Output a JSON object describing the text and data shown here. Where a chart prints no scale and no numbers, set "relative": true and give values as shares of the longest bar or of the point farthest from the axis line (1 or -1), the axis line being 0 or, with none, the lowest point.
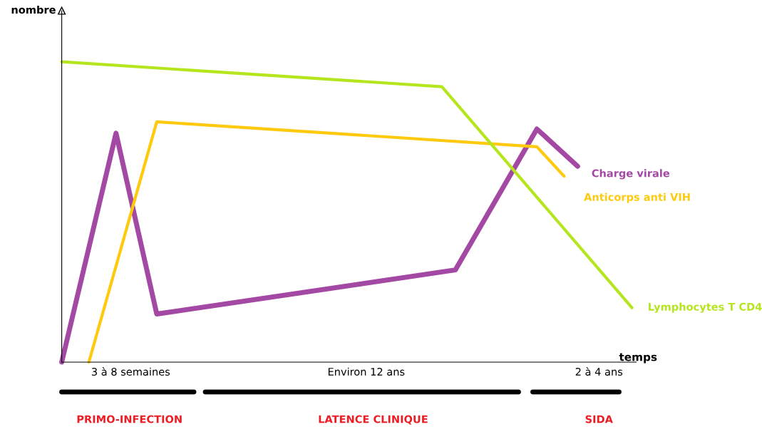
{
  "chart_data": {
    "type": "line",
    "relative": true,
    "xlabel": "temps",
    "ylabel": "nombre",
    "categories": [
      null,
      null,
      null,
      null,
      null,
      null,
      null,
      null,
      null,
      null,
      null,
      null,
      null,
      null,
      null,
      null,
      null,
      null,
      null,
      null,
      null,
      null,
      null,
      null,
      null,
      null,
      null,
      null,
      null,
      null,
      null,
      null,
      null,
      null,
      null,
      null,
      null,
      null,
      null,
      null,
      null,
      null,
      null
    ],
    "series": [
      {
        "name": "Charge virale",
        "color": "#a349a4",
        "values": [
          0,
          null,
          null,
          null,
          0.762,
          null,
          null,
          0.16,
          null,
          null,
          null,
          null,
          null,
          null,
          null,
          null,
          null,
          null,
          null,
          null,
          null,
          null,
          null,
          null,
          null,
          null,
          null,
          null,
          null,
          0.307,
          null,
          null,
          null,
          null,
          null,
          0.776,
          null,
          null,
          0.652,
          null,
          null,
          null,
          null
        ]
      },
      {
        "name": "Anticorps anti VIH",
        "color": "#ffc90e",
        "values": [
          null,
          null,
          0,
          null,
          null,
          null,
          null,
          0.8,
          null,
          null,
          null,
          null,
          null,
          null,
          null,
          null,
          null,
          null,
          null,
          null,
          null,
          null,
          null,
          null,
          null,
          null,
          null,
          null,
          null,
          null,
          null,
          null,
          null,
          null,
          null,
          0.717,
          null,
          0.619,
          null,
          null,
          null,
          null,
          null
        ]
      },
      {
        "name": "Lymphocytes T CD4",
        "color": "#b5e61d",
        "values": [
          1.0,
          null,
          null,
          null,
          null,
          null,
          null,
          null,
          null,
          null,
          null,
          null,
          null,
          null,
          null,
          null,
          null,
          null,
          null,
          null,
          null,
          null,
          null,
          null,
          null,
          null,
          null,
          null,
          0.917,
          null,
          null,
          null,
          null,
          null,
          null,
          null,
          null,
          null,
          null,
          null,
          null,
          null,
          0.181
        ]
      }
    ],
    "annotations": [
      "3 à 8 semaines",
      "Environ 12 ans",
      "2 à 4 ans",
      "PRIMO-INFECTION",
      "LATENCE CLINIQUE",
      "SIDA"
    ],
    "legend": false
  }
}
